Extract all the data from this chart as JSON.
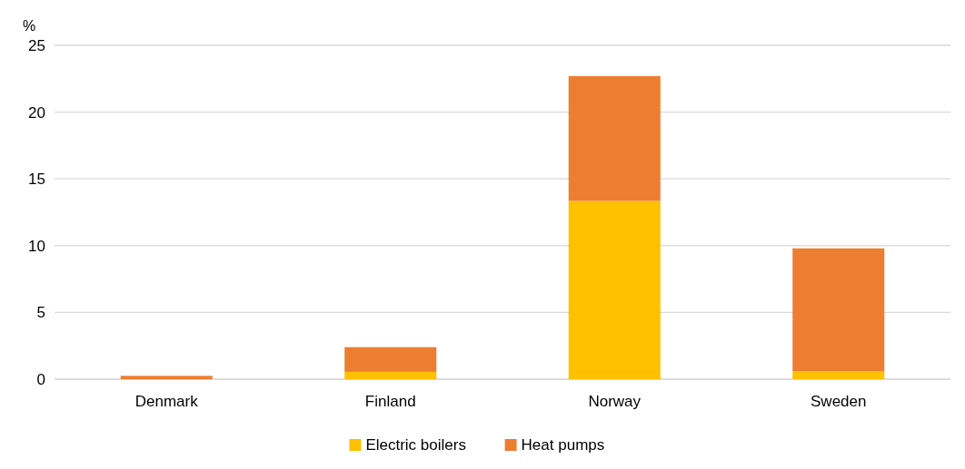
{
  "chart_data": {
    "type": "bar",
    "stacked": true,
    "ylabel": "%",
    "categories": [
      "Denmark",
      "Finland",
      "Norway",
      "Sweden"
    ],
    "series": [
      {
        "name": "Electric boilers",
        "color": "#ffc000",
        "values": [
          0,
          0.55,
          13.35,
          0.6
        ]
      },
      {
        "name": "Heat pumps",
        "color": "#ed7d31",
        "values": [
          0.25,
          1.85,
          9.35,
          9.2
        ]
      }
    ],
    "ylim": [
      0,
      25
    ],
    "yticks": [
      0,
      5,
      10,
      15,
      20,
      25
    ],
    "grid": "y",
    "legend": "bottom"
  }
}
